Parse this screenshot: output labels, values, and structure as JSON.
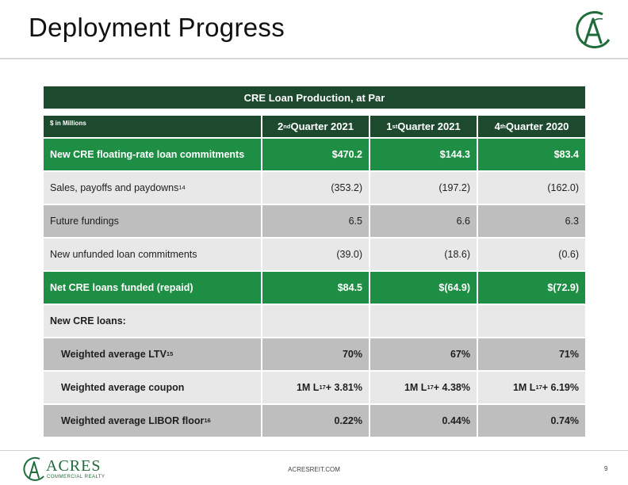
{
  "title": "Deployment Progress",
  "table": {
    "caption": "CRE Loan Production, at Par",
    "unit_label": "$ in Millions",
    "columns": [
      {
        "base": "2",
        "sup": "nd",
        "rest": " Quarter 2021"
      },
      {
        "base": "1",
        "sup": "st",
        "rest": " Quarter 2021"
      },
      {
        "base": "4",
        "sup": "th",
        "rest": " Quarter 2020"
      }
    ],
    "rows": [
      {
        "label": "New CRE floating-rate loan commitments",
        "sup": "",
        "values": [
          "$470.2",
          "$144.3",
          "$83.4"
        ]
      },
      {
        "label": "Sales, payoffs and paydowns",
        "sup": "14",
        "values": [
          "(353.2)",
          "(197.2)",
          "(162.0)"
        ]
      },
      {
        "label": "Future fundings",
        "sup": "",
        "values": [
          "6.5",
          "6.6",
          "6.3"
        ]
      },
      {
        "label": "New unfunded loan commitments",
        "sup": "",
        "values": [
          "(39.0)",
          "(18.6)",
          "(0.6)"
        ]
      },
      {
        "label": "Net CRE loans funded (repaid)",
        "sup": "",
        "values": [
          "$84.5",
          "$(64.9)",
          "$(72.9)"
        ]
      },
      {
        "label": "New CRE loans:",
        "sup": "",
        "values": [
          "",
          "",
          ""
        ]
      },
      {
        "label": "Weighted average LTV",
        "sup": "15",
        "values": [
          "70%",
          "67%",
          "71%"
        ]
      },
      {
        "label": "Weighted average coupon",
        "sup": "",
        "coupon": [
          {
            "pre": "1M L",
            "sup": "17",
            "post": " + 3.81%"
          },
          {
            "pre": "1M L",
            "sup": "17",
            "post": " + 4.38%"
          },
          {
            "pre": "1M L",
            "sup": "17",
            "post": " + 6.19%"
          }
        ]
      },
      {
        "label": "Weighted average LIBOR floor",
        "sup": "16",
        "values": [
          "0.22%",
          "0.44%",
          "0.74%"
        ]
      }
    ]
  },
  "footer": {
    "brand": "ACRES",
    "brand_sub": "COMMERCIAL REALTY",
    "url": "ACRESREIT.COM",
    "page": "9"
  },
  "colors": {
    "dark_green": "#1d4a2f",
    "bright_green": "#1e8e45",
    "light_grey": "#e8e8e8",
    "mid_grey": "#bebebe"
  }
}
